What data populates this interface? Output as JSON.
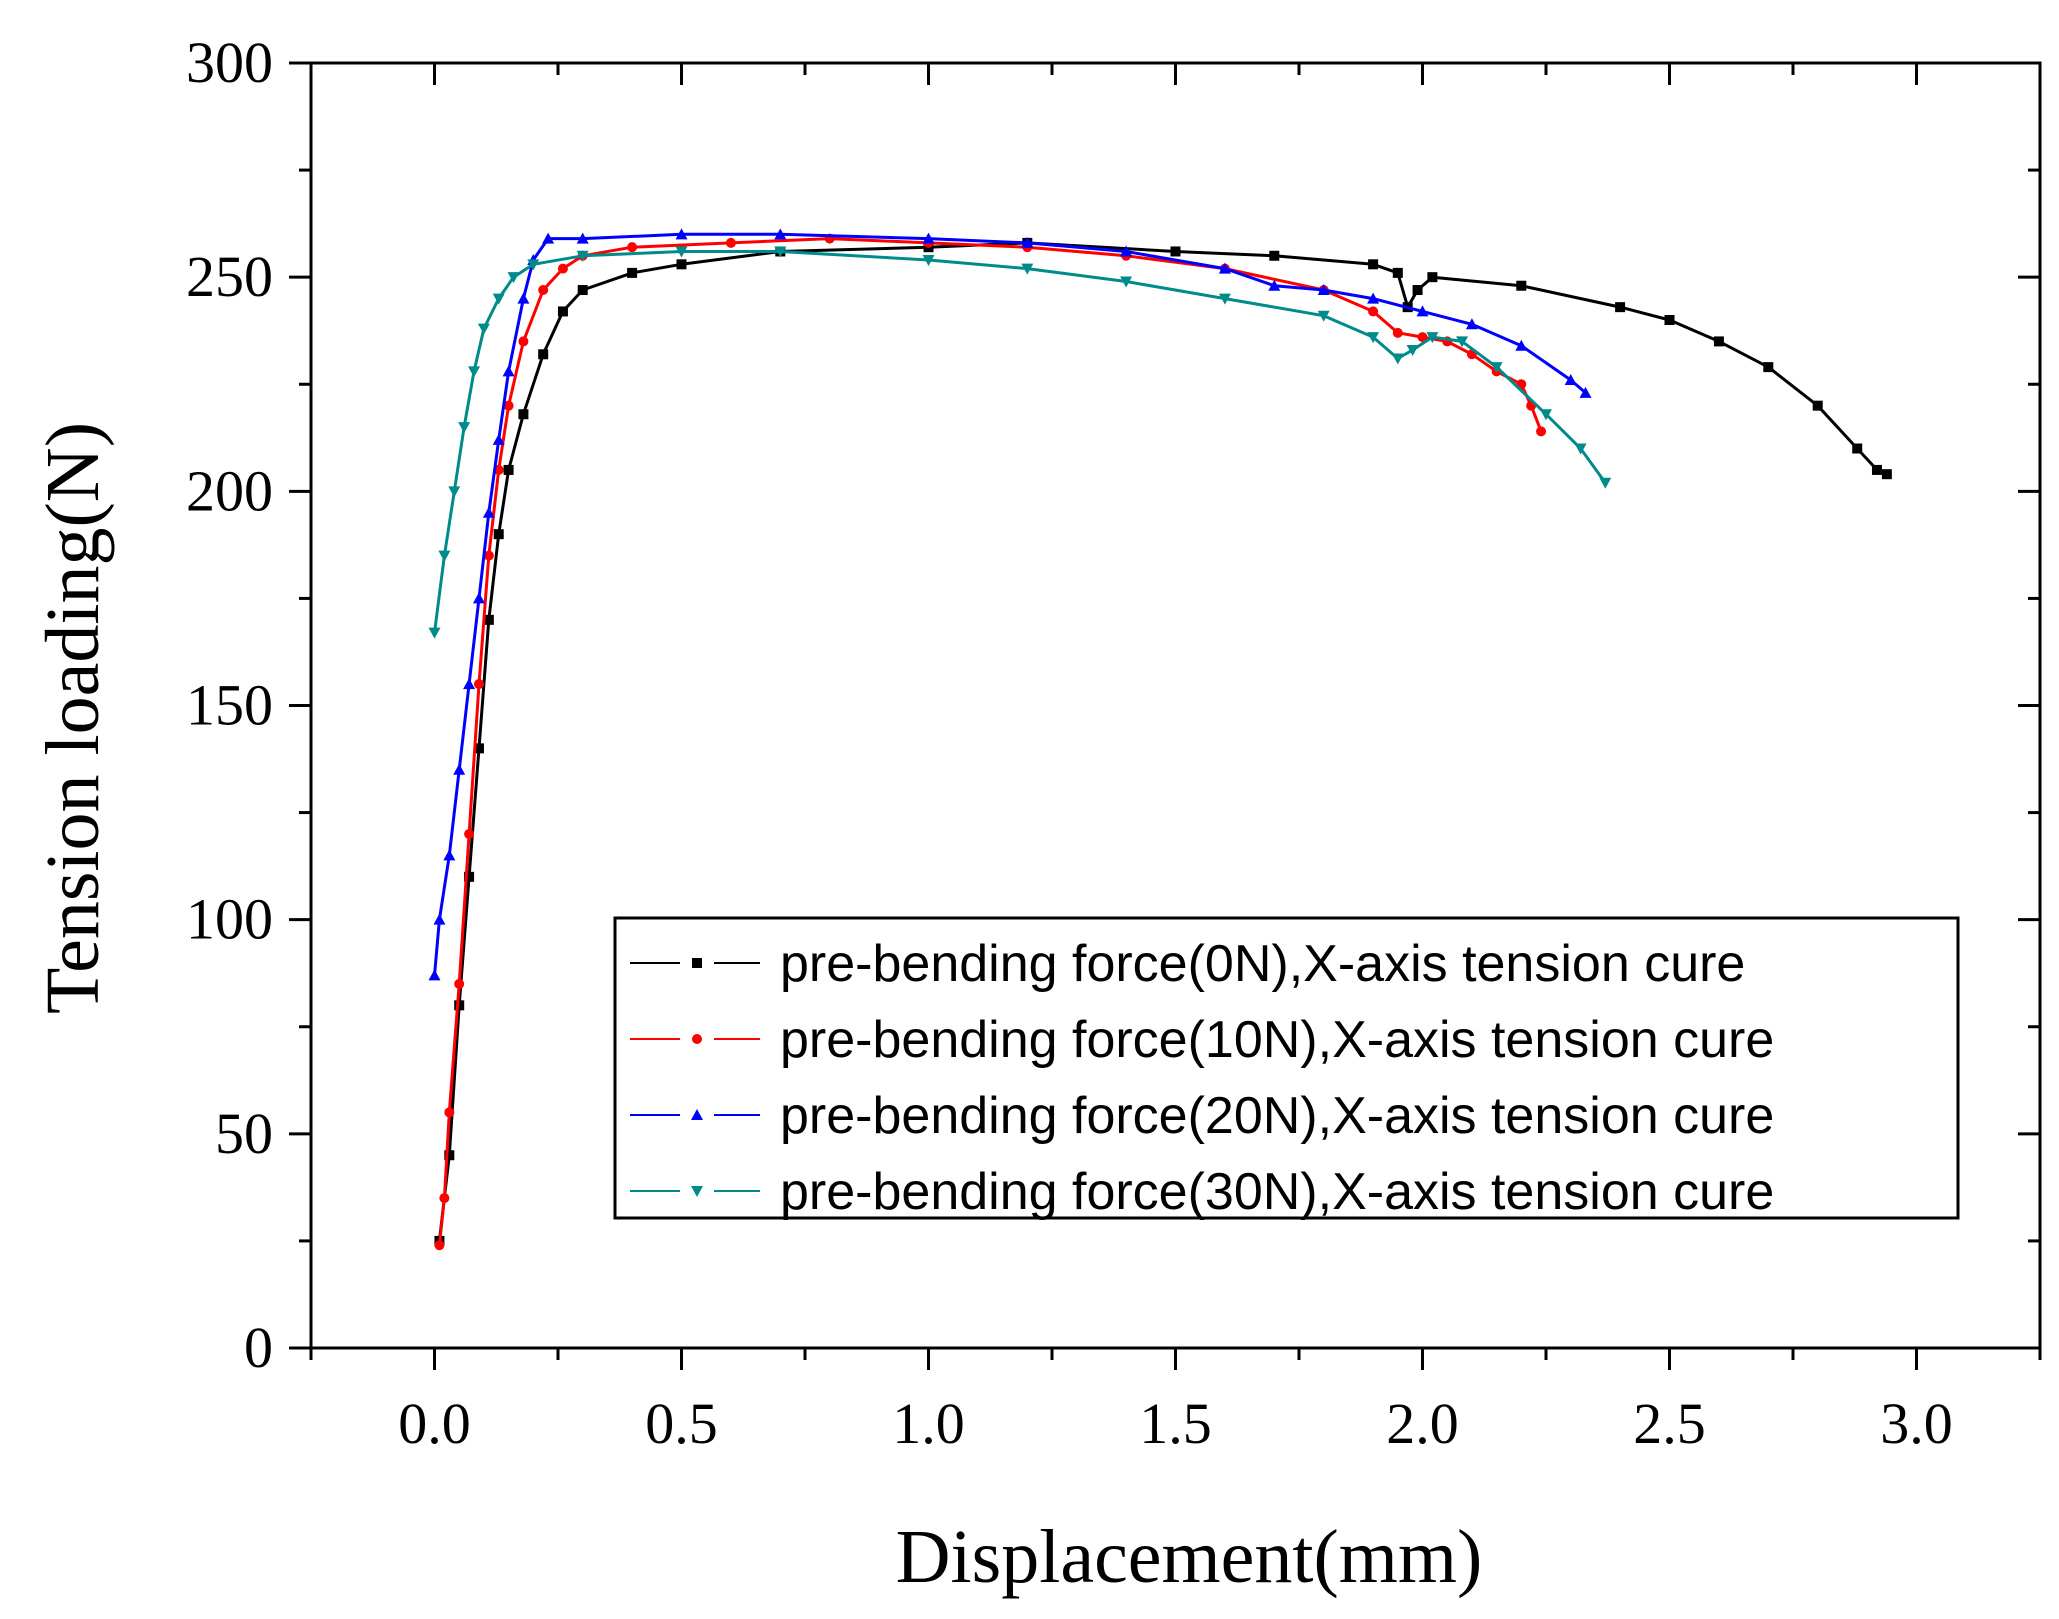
{
  "chart_data": {
    "type": "line",
    "title": "",
    "xlabel": "Displacement(mm)",
    "ylabel": "Tension loading(N)",
    "xlim": [
      -0.25,
      3.25
    ],
    "ylim": [
      0,
      300
    ],
    "x_ticks": [
      0.0,
      0.5,
      1.0,
      1.5,
      2.0,
      2.5,
      3.0
    ],
    "x_tick_labels": [
      "0.0",
      "0.5",
      "1.0",
      "1.5",
      "2.0",
      "2.5",
      "3.0"
    ],
    "y_ticks": [
      0,
      50,
      100,
      150,
      200,
      250,
      300
    ],
    "y_tick_labels": [
      "0",
      "50",
      "100",
      "150",
      "200",
      "250",
      "300"
    ],
    "grid": false,
    "legend_position": "bottom-right",
    "series": [
      {
        "name": "pre-bending force(0N),X-axis tension cure",
        "color": "#000000",
        "marker": "square",
        "points": [
          [
            0.01,
            25
          ],
          [
            0.03,
            45
          ],
          [
            0.05,
            80
          ],
          [
            0.07,
            110
          ],
          [
            0.09,
            140
          ],
          [
            0.11,
            170
          ],
          [
            0.13,
            190
          ],
          [
            0.15,
            205
          ],
          [
            0.18,
            218
          ],
          [
            0.22,
            232
          ],
          [
            0.26,
            242
          ],
          [
            0.3,
            247
          ],
          [
            0.4,
            251
          ],
          [
            0.5,
            253
          ],
          [
            0.7,
            256
          ],
          [
            1.0,
            257
          ],
          [
            1.2,
            258
          ],
          [
            1.5,
            256
          ],
          [
            1.7,
            255
          ],
          [
            1.9,
            253
          ],
          [
            1.95,
            251
          ],
          [
            1.97,
            243
          ],
          [
            1.99,
            247
          ],
          [
            2.02,
            250
          ],
          [
            2.2,
            248
          ],
          [
            2.4,
            243
          ],
          [
            2.5,
            240
          ],
          [
            2.6,
            235
          ],
          [
            2.7,
            229
          ],
          [
            2.8,
            220
          ],
          [
            2.88,
            210
          ],
          [
            2.92,
            205
          ],
          [
            2.94,
            204
          ]
        ]
      },
      {
        "name": "pre-bending force(10N),X-axis tension cure",
        "color": "#ff0000",
        "marker": "circle",
        "points": [
          [
            0.01,
            24
          ],
          [
            0.02,
            35
          ],
          [
            0.03,
            55
          ],
          [
            0.05,
            85
          ],
          [
            0.07,
            120
          ],
          [
            0.09,
            155
          ],
          [
            0.11,
            185
          ],
          [
            0.13,
            205
          ],
          [
            0.15,
            220
          ],
          [
            0.18,
            235
          ],
          [
            0.22,
            247
          ],
          [
            0.26,
            252
          ],
          [
            0.3,
            255
          ],
          [
            0.4,
            257
          ],
          [
            0.6,
            258
          ],
          [
            0.8,
            259
          ],
          [
            1.0,
            258
          ],
          [
            1.2,
            257
          ],
          [
            1.4,
            255
          ],
          [
            1.6,
            252
          ],
          [
            1.8,
            247
          ],
          [
            1.9,
            242
          ],
          [
            1.95,
            237
          ],
          [
            2.0,
            236
          ],
          [
            2.05,
            235
          ],
          [
            2.1,
            232
          ],
          [
            2.15,
            228
          ],
          [
            2.2,
            225
          ],
          [
            2.22,
            220
          ],
          [
            2.24,
            214
          ]
        ]
      },
      {
        "name": "pre-bending force(20N),X-axis tension cure",
        "color": "#0000ff",
        "marker": "triangle-up",
        "points": [
          [
            0.0,
            87
          ],
          [
            0.01,
            100
          ],
          [
            0.03,
            115
          ],
          [
            0.05,
            135
          ],
          [
            0.07,
            155
          ],
          [
            0.09,
            175
          ],
          [
            0.11,
            195
          ],
          [
            0.13,
            212
          ],
          [
            0.15,
            228
          ],
          [
            0.18,
            245
          ],
          [
            0.2,
            254
          ],
          [
            0.23,
            259
          ],
          [
            0.3,
            259
          ],
          [
            0.5,
            260
          ],
          [
            0.7,
            260
          ],
          [
            1.0,
            259
          ],
          [
            1.2,
            258
          ],
          [
            1.4,
            256
          ],
          [
            1.6,
            252
          ],
          [
            1.7,
            248
          ],
          [
            1.8,
            247
          ],
          [
            1.9,
            245
          ],
          [
            2.0,
            242
          ],
          [
            2.1,
            239
          ],
          [
            2.2,
            234
          ],
          [
            2.3,
            226
          ],
          [
            2.33,
            223
          ]
        ]
      },
      {
        "name": "pre-bending force(30N),X-axis tension cure",
        "color": "#008b8b",
        "marker": "triangle-down",
        "points": [
          [
            0.0,
            167
          ],
          [
            0.02,
            185
          ],
          [
            0.04,
            200
          ],
          [
            0.06,
            215
          ],
          [
            0.08,
            228
          ],
          [
            0.1,
            238
          ],
          [
            0.13,
            245
          ],
          [
            0.16,
            250
          ],
          [
            0.2,
            253
          ],
          [
            0.3,
            255
          ],
          [
            0.5,
            256
          ],
          [
            0.7,
            256
          ],
          [
            1.0,
            254
          ],
          [
            1.2,
            252
          ],
          [
            1.4,
            249
          ],
          [
            1.6,
            245
          ],
          [
            1.8,
            241
          ],
          [
            1.9,
            236
          ],
          [
            1.95,
            231
          ],
          [
            1.98,
            233
          ],
          [
            2.02,
            236
          ],
          [
            2.08,
            235
          ],
          [
            2.15,
            229
          ],
          [
            2.25,
            218
          ],
          [
            2.32,
            210
          ],
          [
            2.37,
            202
          ]
        ]
      }
    ]
  }
}
